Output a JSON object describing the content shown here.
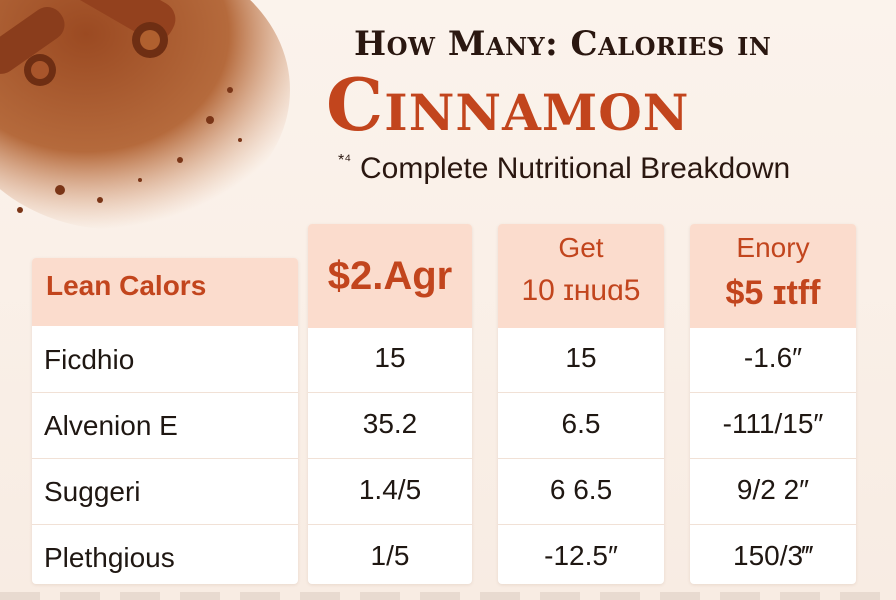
{
  "header": {
    "title_line1": "How Many: Calories in",
    "title_line2": "Cinnamon",
    "subtitle_mark": "*⁴",
    "subtitle": "Complete Nutritional Breakdown"
  },
  "colors": {
    "accent": "#c2451d",
    "header_bg": "#fbdccd",
    "text_dark": "#2a1710",
    "background": "#fbf3ec"
  },
  "table": {
    "label_header": "Lean Calors",
    "columns": [
      {
        "header_line1": "$2.Agr",
        "header_line2": ""
      },
      {
        "header_line1": "Get",
        "header_line2": "10 ɪʜuɑ5"
      },
      {
        "header_line1": "Enory",
        "header_line2": "$5 ɪtff"
      }
    ],
    "rows": [
      {
        "label": "Ficdhio",
        "values": [
          "15",
          "15",
          "-1.6″"
        ]
      },
      {
        "label": "Alvenion E",
        "values": [
          "35.2",
          "6.5",
          "-111/15″"
        ]
      },
      {
        "label": "Suggeri",
        "values": [
          "1.4/5",
          "6 6.5",
          "9/2 2″"
        ]
      },
      {
        "label": "Plethgious",
        "values": [
          "1/5",
          "-12.5″",
          "150/3‴"
        ]
      }
    ]
  }
}
